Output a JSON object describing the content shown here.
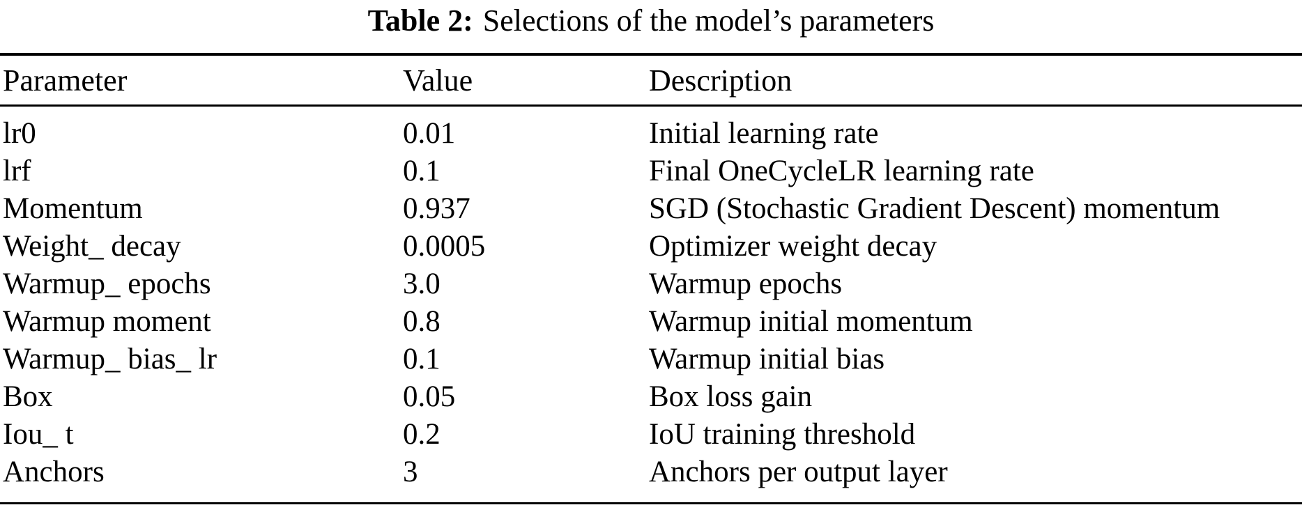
{
  "caption": {
    "label": "Table 2:",
    "text": "Selections of the model’s parameters"
  },
  "table": {
    "columns": [
      {
        "key": "parameter",
        "label": "Parameter"
      },
      {
        "key": "value",
        "label": "Value"
      },
      {
        "key": "description",
        "label": "Description"
      }
    ],
    "rows": [
      {
        "parameter": "lr0",
        "value": "0.01",
        "description": "Initial learning rate"
      },
      {
        "parameter": "lrf",
        "value": "0.1",
        "description": "Final OneCycleLR learning rate"
      },
      {
        "parameter": "Momentum",
        "value": "0.937",
        "description": "SGD (Stochastic Gradient Descent) momentum"
      },
      {
        "parameter": "Weight_ decay",
        "value": "0.0005",
        "description": "Optimizer weight decay"
      },
      {
        "parameter": "Warmup_ epochs",
        "value": "3.0",
        "description": "Warmup epochs"
      },
      {
        "parameter": "Warmup moment",
        "value": "0.8",
        "description": "Warmup initial momentum"
      },
      {
        "parameter": "Warmup_ bias_ lr",
        "value": "0.1",
        "description": "Warmup initial bias"
      },
      {
        "parameter": "Box",
        "value": "0.05",
        "description": "Box loss gain"
      },
      {
        "parameter": "Iou_ t",
        "value": "0.2",
        "description": "IoU training threshold"
      },
      {
        "parameter": "Anchors",
        "value": "3",
        "description": "Anchors per output layer"
      }
    ]
  }
}
